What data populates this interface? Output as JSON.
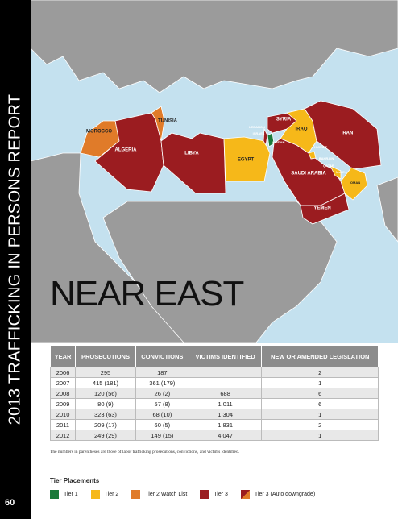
{
  "header": {
    "report_title": "2013 TRAFFICKING IN PERSONS REPORT",
    "region": "NEAR EAST"
  },
  "map": {
    "countries": [
      "MOROCCO",
      "ALGERIA",
      "TUNISIA",
      "LIBYA",
      "EGYPT",
      "LEBANON",
      "ISRAEL",
      "SYRIA",
      "JORDAN",
      "IRAQ",
      "IRAN",
      "KUWAIT",
      "BAHRAIN",
      "QATAR",
      "U.A.E.",
      "OMAN",
      "SAUDI ARABIA",
      "YEMEN"
    ]
  },
  "table": {
    "columns": [
      "YEAR",
      "PROSECUTIONS",
      "CONVICTIONS",
      "VICTIMS IDENTIFIED",
      "NEW OR AMENDED LEGISLATION"
    ],
    "rows": [
      [
        "2006",
        "295",
        "187",
        null,
        "2"
      ],
      [
        "2007",
        "415 (181)",
        "361 (179)",
        null,
        "1"
      ],
      [
        "2008",
        "120 (56)",
        "26 (2)",
        "688",
        "6"
      ],
      [
        "2009",
        "80 (9)",
        "57 (8)",
        "1,011",
        "6"
      ],
      [
        "2010",
        "323 (63)",
        "68 (10)",
        "1,304",
        "1"
      ],
      [
        "2011",
        "209 (17)",
        "60 (5)",
        "1,831",
        "2"
      ],
      [
        "2012",
        "249 (29)",
        "149 (15)",
        "4,047",
        "1"
      ]
    ],
    "footnote": "The numbers in parentheses are those of labor trafficking prosecutions, convictions, and victims identified."
  },
  "legend": {
    "title": "Tier Placements",
    "items": [
      {
        "label": "Tier 1",
        "color": "#1a7a3a"
      },
      {
        "label": "Tier 2",
        "color": "#f6b819"
      },
      {
        "label": "Tier 2 Watch List",
        "color": "#e07b29"
      },
      {
        "label": "Tier 3",
        "color": "#9b1c20"
      },
      {
        "label": "Tier 3 (Auto downgrade)",
        "color": "#9b1c20",
        "color2": "#e07b29"
      }
    ]
  },
  "footer": {
    "page_number": "60"
  }
}
